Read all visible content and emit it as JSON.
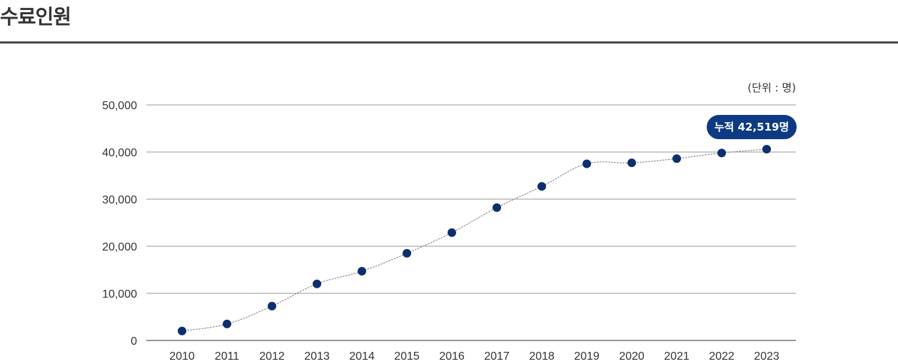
{
  "page": {
    "title": "수료인원",
    "unit_label": "(단위 : 명)",
    "callout": "누적 42,519명"
  },
  "colors": {
    "marker": "#0d2f6e",
    "callout_bg": "#0d3a82",
    "grid": "#9a9a9a",
    "line": "#8a8a8a"
  },
  "chart_data": {
    "type": "line",
    "title": "수료인원",
    "unit": "(단위 : 명)",
    "categories": [
      "2010",
      "2011",
      "2012",
      "2013",
      "2014",
      "2015",
      "2016",
      "2017",
      "2018",
      "2019",
      "2020",
      "2021",
      "2022",
      "2023"
    ],
    "values": [
      2000,
      3500,
      7300,
      12000,
      14700,
      18500,
      22900,
      28200,
      32700,
      37500,
      37700,
      38600,
      39800,
      40600
    ],
    "ylim": [
      0,
      50000
    ],
    "yticks": [
      0,
      10000,
      20000,
      30000,
      40000,
      50000
    ],
    "ytick_labels": [
      "0",
      "10,000",
      "20,000",
      "30,000",
      "40,000",
      "50,000"
    ],
    "grid": true,
    "annotation": "누적 42,519명"
  }
}
